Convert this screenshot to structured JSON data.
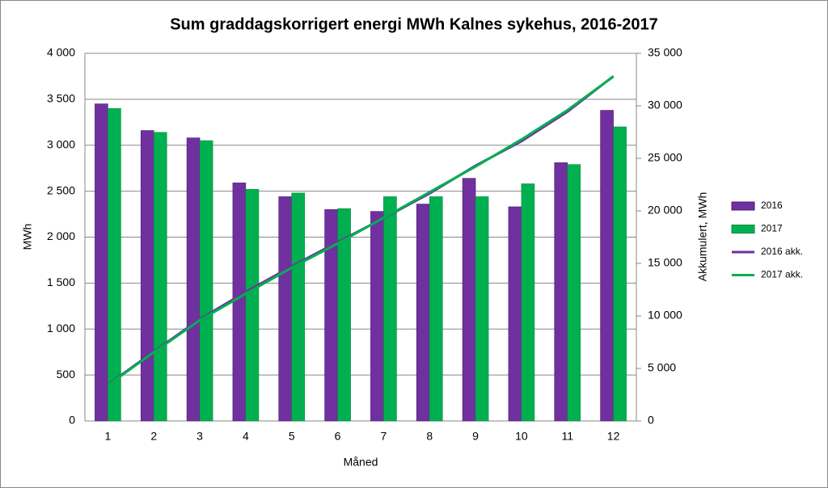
{
  "chart_data": {
    "type": "bar",
    "title": "Sum graddagskorrigert  energi MWh Kalnes sykehus, 2016-2017",
    "x_label": "Måned",
    "y_label": "MWh",
    "y2_label": "Akkumulert, MWh",
    "categories": [
      "1",
      "2",
      "3",
      "4",
      "5",
      "6",
      "7",
      "8",
      "9",
      "10",
      "11",
      "12"
    ],
    "series": [
      {
        "name": "2016",
        "type": "bar",
        "color": "#7030a0",
        "values": [
          3450,
          3160,
          3080,
          2590,
          2440,
          2300,
          2280,
          2360,
          2640,
          2330,
          2810,
          3380
        ]
      },
      {
        "name": "2017",
        "type": "bar",
        "color": "#00b050",
        "values": [
          3400,
          3140,
          3050,
          2520,
          2480,
          2310,
          2440,
          2440,
          2440,
          2580,
          2790,
          3200
        ]
      },
      {
        "name": "2016 akk.",
        "type": "line",
        "axis": "y2",
        "color": "#7030a0",
        "values": [
          3450,
          6610,
          9690,
          12280,
          14720,
          17020,
          19300,
          21660,
          24300,
          26630,
          29440,
          32820
        ]
      },
      {
        "name": "2017 akk.",
        "type": "line",
        "axis": "y2",
        "color": "#00b050",
        "values": [
          3400,
          6540,
          9590,
          12110,
          14590,
          16900,
          19340,
          21780,
          24220,
          26800,
          29590,
          32790
        ]
      }
    ],
    "ylim": [
      0,
      4000
    ],
    "yticks": [
      0,
      500,
      {
        "value": 1000,
        "label": "1 000"
      },
      {
        "value": 1500,
        "label": "1 500"
      },
      {
        "value": 2000,
        "label": "2 000"
      },
      {
        "value": 2500,
        "label": "2 500"
      },
      {
        "value": 3000,
        "label": "3 000"
      },
      {
        "value": 3500,
        "label": "3 500"
      },
      {
        "value": 4000,
        "label": "4 000"
      }
    ],
    "y2lim": [
      0,
      35000
    ],
    "y2ticks": [
      0,
      {
        "value": 5000,
        "label": "5 000"
      },
      {
        "value": 10000,
        "label": "10 000"
      },
      {
        "value": 15000,
        "label": "15 000"
      },
      {
        "value": 20000,
        "label": "20 000"
      },
      {
        "value": 25000,
        "label": "25 000"
      },
      {
        "value": 30000,
        "label": "30 000"
      },
      {
        "value": 35000,
        "label": "35 000"
      }
    ],
    "grid": true,
    "legend": "right"
  }
}
